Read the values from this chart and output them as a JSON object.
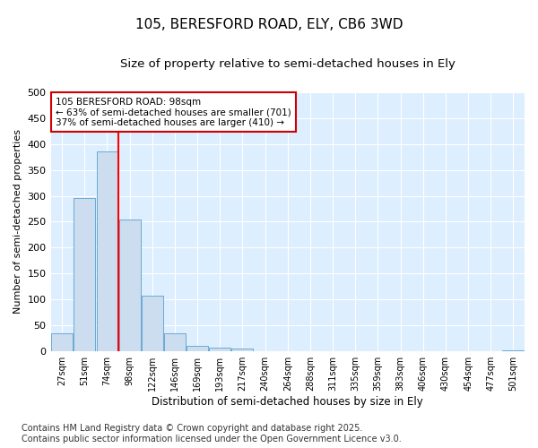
{
  "title": "105, BERESFORD ROAD, ELY, CB6 3WD",
  "subtitle": "Size of property relative to semi-detached houses in Ely",
  "xlabel": "Distribution of semi-detached houses by size in Ely",
  "ylabel": "Number of semi-detached properties",
  "bins": [
    "27sqm",
    "51sqm",
    "74sqm",
    "98sqm",
    "122sqm",
    "146sqm",
    "169sqm",
    "193sqm",
    "217sqm",
    "240sqm",
    "264sqm",
    "288sqm",
    "311sqm",
    "335sqm",
    "359sqm",
    "383sqm",
    "406sqm",
    "430sqm",
    "454sqm",
    "477sqm",
    "501sqm"
  ],
  "values": [
    35,
    295,
    385,
    255,
    108,
    35,
    10,
    8,
    5,
    0,
    0,
    0,
    0,
    0,
    0,
    0,
    0,
    0,
    0,
    0,
    2
  ],
  "bar_color": "#ccddf0",
  "bar_edge_color": "#6aaad4",
  "red_line_bin_index": 3,
  "annotation_text": "105 BERESFORD ROAD: 98sqm\n← 63% of semi-detached houses are smaller (701)\n37% of semi-detached houses are larger (410) →",
  "annotation_box_color": "#ffffff",
  "annotation_box_edge_color": "#cc0000",
  "ylim": [
    0,
    500
  ],
  "yticks": [
    0,
    50,
    100,
    150,
    200,
    250,
    300,
    350,
    400,
    450,
    500
  ],
  "footer": "Contains HM Land Registry data © Crown copyright and database right 2025.\nContains public sector information licensed under the Open Government Licence v3.0.",
  "background_color": "#ffffff",
  "plot_bg_color": "#ddeeff",
  "title_fontsize": 11,
  "subtitle_fontsize": 9.5,
  "ylabel_fontsize": 8,
  "xlabel_fontsize": 8.5,
  "footer_fontsize": 7,
  "annotation_fontsize": 7.5
}
